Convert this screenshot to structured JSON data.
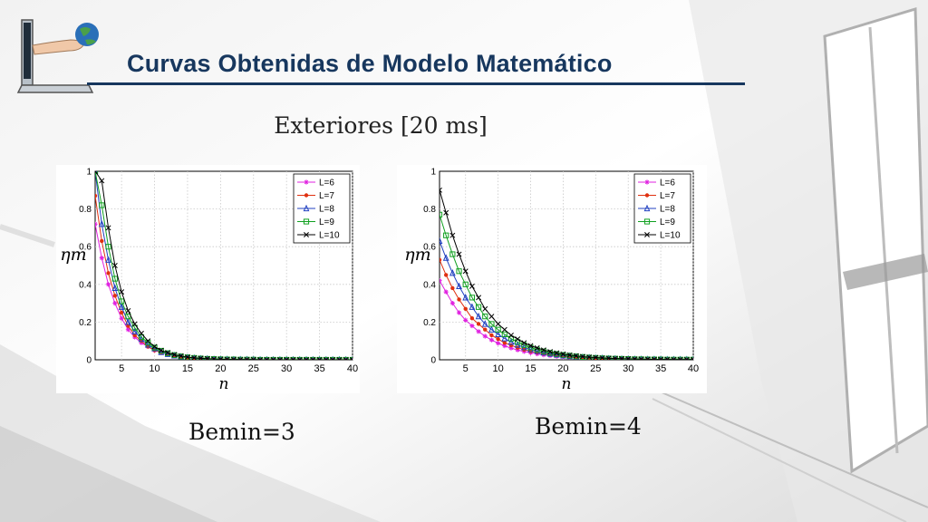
{
  "slide": {
    "title": "Curvas Obtenidas de Modelo Matemático",
    "subtitle": "Exteriores [20 ms]"
  },
  "icons": {
    "logo": "laptop-hand-globe-icon"
  },
  "colors": {
    "title": "#17375e",
    "L6": "#e020e0",
    "L7": "#e03010",
    "L8": "#2040c0",
    "L9": "#10a020",
    "L10": "#000000"
  },
  "chart_data": [
    {
      "type": "line",
      "caption": "Bemin=3",
      "xlabel": "n",
      "ylabel": "ηm",
      "xlim": [
        1,
        40
      ],
      "ylim": [
        0,
        1
      ],
      "xticks": [
        5,
        10,
        15,
        20,
        25,
        30,
        35,
        40
      ],
      "yticks": [
        0,
        0.2,
        0.4,
        0.6,
        0.8,
        1
      ],
      "grid": true,
      "legend_position": "top-right",
      "x": [
        1,
        2,
        3,
        4,
        5,
        6,
        7,
        8,
        9,
        10,
        11,
        12,
        13,
        14,
        15,
        16,
        17,
        18,
        19,
        20,
        21,
        22,
        23,
        24,
        25,
        26,
        27,
        28,
        29,
        30,
        31,
        32,
        33,
        34,
        35,
        36,
        37,
        38,
        39,
        40
      ],
      "series": [
        {
          "name": "L=6",
          "marker": "star",
          "color": "#e020e0",
          "values": [
            0.72,
            0.54,
            0.4,
            0.3,
            0.22,
            0.16,
            0.12,
            0.09,
            0.07,
            0.05,
            0.04,
            0.03,
            0.02,
            0.015,
            0.01,
            0.008,
            0.006,
            0.004,
            0.003,
            0.002,
            0.002,
            0.001,
            0.001,
            0.001,
            0.001,
            0,
            0,
            0,
            0,
            0,
            0,
            0,
            0,
            0,
            0,
            0,
            0,
            0,
            0,
            0
          ]
        },
        {
          "name": "L=7",
          "marker": "dot",
          "color": "#e03010",
          "values": [
            0.87,
            0.63,
            0.46,
            0.34,
            0.25,
            0.18,
            0.13,
            0.1,
            0.07,
            0.05,
            0.04,
            0.03,
            0.02,
            0.015,
            0.011,
            0.008,
            0.006,
            0.004,
            0.003,
            0.002,
            0.002,
            0.001,
            0.001,
            0.001,
            0.001,
            0,
            0,
            0,
            0,
            0,
            0,
            0,
            0,
            0,
            0,
            0,
            0,
            0,
            0,
            0
          ]
        },
        {
          "name": "L=8",
          "marker": "triangle",
          "color": "#2040c0",
          "values": [
            1.0,
            0.72,
            0.53,
            0.38,
            0.28,
            0.2,
            0.15,
            0.11,
            0.08,
            0.06,
            0.04,
            0.03,
            0.022,
            0.016,
            0.012,
            0.009,
            0.006,
            0.005,
            0.003,
            0.002,
            0.002,
            0.001,
            0.001,
            0.001,
            0.001,
            0,
            0,
            0,
            0,
            0,
            0,
            0,
            0,
            0,
            0,
            0,
            0,
            0,
            0,
            0
          ]
        },
        {
          "name": "L=9",
          "marker": "square",
          "color": "#10a020",
          "values": [
            1.0,
            0.82,
            0.6,
            0.43,
            0.31,
            0.23,
            0.17,
            0.12,
            0.09,
            0.065,
            0.048,
            0.035,
            0.025,
            0.018,
            0.013,
            0.01,
            0.007,
            0.005,
            0.004,
            0.003,
            0.002,
            0.002,
            0.001,
            0.001,
            0.001,
            0,
            0,
            0,
            0,
            0,
            0,
            0,
            0,
            0,
            0,
            0,
            0,
            0,
            0,
            0
          ]
        },
        {
          "name": "L=10",
          "marker": "x",
          "color": "#000000",
          "values": [
            1.0,
            0.95,
            0.7,
            0.5,
            0.36,
            0.26,
            0.19,
            0.14,
            0.1,
            0.07,
            0.05,
            0.038,
            0.027,
            0.02,
            0.014,
            0.01,
            0.008,
            0.006,
            0.004,
            0.003,
            0.002,
            0.002,
            0.001,
            0.001,
            0.001,
            0,
            0,
            0,
            0,
            0,
            0,
            0,
            0,
            0,
            0,
            0,
            0,
            0,
            0,
            0
          ]
        }
      ]
    },
    {
      "type": "line",
      "caption": "Bemin=4",
      "xlabel": "n",
      "ylabel": "ηm",
      "xlim": [
        1,
        40
      ],
      "ylim": [
        0,
        1
      ],
      "xticks": [
        5,
        10,
        15,
        20,
        25,
        30,
        35,
        40
      ],
      "yticks": [
        0,
        0.2,
        0.4,
        0.6,
        0.8,
        1
      ],
      "grid": true,
      "legend_position": "top-right",
      "x": [
        1,
        2,
        3,
        4,
        5,
        6,
        7,
        8,
        9,
        10,
        11,
        12,
        13,
        14,
        15,
        16,
        17,
        18,
        19,
        20,
        21,
        22,
        23,
        24,
        25,
        26,
        27,
        28,
        29,
        30,
        31,
        32,
        33,
        34,
        35,
        36,
        37,
        38,
        39,
        40
      ],
      "series": [
        {
          "name": "L=6",
          "marker": "star",
          "color": "#e020e0",
          "values": [
            0.42,
            0.36,
            0.3,
            0.25,
            0.21,
            0.18,
            0.15,
            0.125,
            0.105,
            0.088,
            0.074,
            0.062,
            0.052,
            0.044,
            0.037,
            0.031,
            0.026,
            0.022,
            0.018,
            0.015,
            0.013,
            0.011,
            0.009,
            0.008,
            0.007,
            0.006,
            0.005,
            0.004,
            0.003,
            0.003,
            0.002,
            0.002,
            0.002,
            0.001,
            0.001,
            0.001,
            0.001,
            0.001,
            0.001,
            0.001
          ]
        },
        {
          "name": "L=7",
          "marker": "dot",
          "color": "#e03010",
          "values": [
            0.53,
            0.45,
            0.38,
            0.32,
            0.27,
            0.22,
            0.19,
            0.16,
            0.13,
            0.11,
            0.09,
            0.077,
            0.064,
            0.054,
            0.045,
            0.038,
            0.032,
            0.027,
            0.022,
            0.019,
            0.016,
            0.013,
            0.011,
            0.009,
            0.008,
            0.006,
            0.005,
            0.004,
            0.004,
            0.003,
            0.003,
            0.002,
            0.002,
            0.002,
            0.001,
            0.001,
            0.001,
            0.001,
            0.001,
            0.001
          ]
        },
        {
          "name": "L=8",
          "marker": "triangle",
          "color": "#2040c0",
          "values": [
            0.63,
            0.54,
            0.46,
            0.39,
            0.33,
            0.28,
            0.23,
            0.19,
            0.16,
            0.135,
            0.113,
            0.094,
            0.079,
            0.066,
            0.055,
            0.046,
            0.038,
            0.032,
            0.027,
            0.022,
            0.019,
            0.016,
            0.013,
            0.011,
            0.009,
            0.008,
            0.006,
            0.005,
            0.004,
            0.004,
            0.003,
            0.003,
            0.002,
            0.002,
            0.002,
            0.001,
            0.001,
            0.001,
            0.001,
            0.001
          ]
        },
        {
          "name": "L=9",
          "marker": "square",
          "color": "#10a020",
          "values": [
            0.77,
            0.66,
            0.56,
            0.47,
            0.4,
            0.33,
            0.28,
            0.23,
            0.19,
            0.16,
            0.135,
            0.112,
            0.094,
            0.078,
            0.065,
            0.054,
            0.045,
            0.037,
            0.031,
            0.026,
            0.022,
            0.018,
            0.015,
            0.012,
            0.01,
            0.008,
            0.007,
            0.006,
            0.005,
            0.004,
            0.003,
            0.003,
            0.002,
            0.002,
            0.002,
            0.001,
            0.001,
            0.001,
            0.001,
            0.001
          ]
        },
        {
          "name": "L=10",
          "marker": "x",
          "color": "#000000",
          "values": [
            0.9,
            0.78,
            0.66,
            0.56,
            0.47,
            0.39,
            0.33,
            0.27,
            0.23,
            0.19,
            0.16,
            0.13,
            0.11,
            0.09,
            0.075,
            0.063,
            0.052,
            0.043,
            0.036,
            0.03,
            0.025,
            0.021,
            0.017,
            0.014,
            0.012,
            0.01,
            0.008,
            0.007,
            0.006,
            0.005,
            0.004,
            0.003,
            0.003,
            0.002,
            0.002,
            0.002,
            0.001,
            0.001,
            0.001,
            0.001
          ]
        }
      ]
    }
  ]
}
